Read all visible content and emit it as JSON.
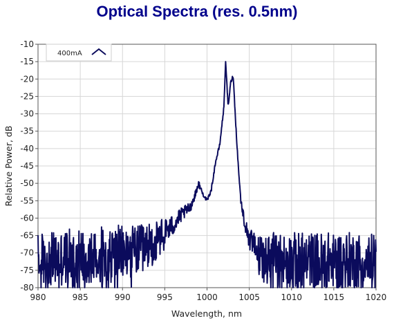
{
  "chart_data": {
    "type": "line",
    "title": "Optical Spectra (res. 0.5nm)",
    "xlabel": "Wavelength, nm",
    "ylabel": "Relative Power, dB",
    "xlim": [
      980,
      1020
    ],
    "ylim": [
      -80,
      -10
    ],
    "x_ticks": [
      980,
      985,
      990,
      995,
      1000,
      1005,
      1010,
      1015,
      1020
    ],
    "y_ticks": [
      -10,
      -15,
      -20,
      -25,
      -30,
      -35,
      -40,
      -45,
      -50,
      -55,
      -60,
      -65,
      -70,
      -75,
      -80
    ],
    "grid": true,
    "legend_position": "top-left",
    "colors": {
      "series": "#0b0b5c",
      "title": "#00008b",
      "grid": "#d6d6d6"
    },
    "series": [
      {
        "name": "400mA",
        "x": [
          980,
          982,
          984,
          986,
          988,
          990,
          992,
          994,
          995,
          996,
          997,
          998,
          998.5,
          999,
          999.5,
          1000,
          1000.5,
          1001,
          1001.5,
          1002,
          1002.2,
          1002.5,
          1002.8,
          1003.1,
          1003.4,
          1003.7,
          1004,
          1004.5,
          1005,
          1006,
          1008,
          1010,
          1012,
          1014,
          1016,
          1018,
          1020
        ],
        "values": [
          -72,
          -72,
          -71,
          -71,
          -70,
          -70,
          -69,
          -67,
          -64,
          -62,
          -59,
          -57,
          -54,
          -50,
          -53,
          -55,
          -52,
          -44,
          -39,
          -28,
          -15,
          -28,
          -21,
          -19,
          -33,
          -45,
          -55,
          -62,
          -66,
          -70,
          -71,
          -72,
          -72,
          -72,
          -72,
          -72,
          -72
        ],
        "noise_dB": [
          8,
          8,
          8,
          8,
          8,
          8,
          7,
          6,
          4,
          3,
          2,
          1.5,
          1,
          1,
          0.5,
          0.5,
          0.5,
          0.5,
          0.5,
          0.5,
          0,
          0.5,
          0.5,
          0.5,
          0.5,
          0.5,
          1,
          2,
          3,
          5,
          7,
          8,
          8,
          8,
          8,
          8,
          8
        ]
      }
    ]
  }
}
